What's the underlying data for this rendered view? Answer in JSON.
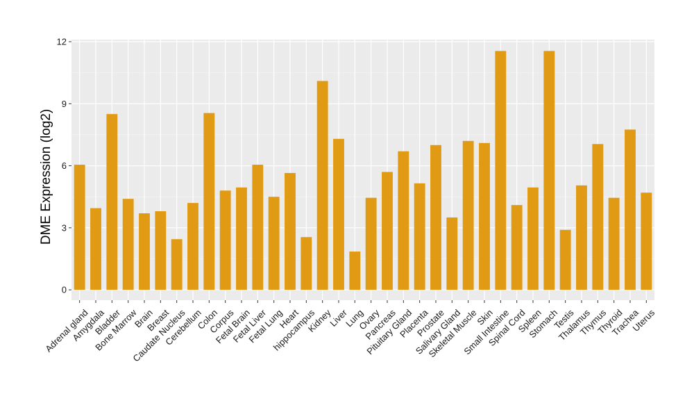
{
  "chart_data": {
    "type": "bar",
    "title": "",
    "xlabel": "",
    "ylabel": "DME Expression (log2)",
    "ylim": [
      -0.5,
      12.1
    ],
    "yticks": [
      0,
      3,
      6,
      9,
      12
    ],
    "grid": true,
    "bar_color": "#E09A14",
    "panel_color": "#EBEBEB",
    "categories": [
      "Adrenal gland",
      "Amygdala",
      "Bladder",
      "Bone Marrow",
      "Brain",
      "Breast",
      "Caudate Nucleus",
      "Cerebellum",
      "Colon",
      "Corpus",
      "Fetal Brain",
      "Fetal Liver",
      "Fetal Lung",
      "Heart",
      "hippocampus",
      "Kidney",
      "Liver",
      "Lung",
      "Ovary",
      "Pancreas",
      "Pituitary Gland",
      "Placenta",
      "Prostate",
      "Salivary Gland",
      "Skeletal Muscle",
      "Skin",
      "Small Intestine",
      "Spinal Cord",
      "Spleen",
      "Stomach",
      "Testis",
      "Thalamus",
      "Thymus",
      "Thyroid",
      "Trachea",
      "Uterus"
    ],
    "values": [
      6.05,
      3.95,
      8.5,
      4.4,
      3.7,
      3.8,
      2.45,
      4.2,
      8.55,
      4.8,
      4.95,
      6.05,
      4.5,
      5.65,
      2.55,
      10.1,
      7.3,
      1.85,
      4.45,
      5.7,
      6.7,
      5.15,
      7.0,
      3.5,
      7.2,
      7.1,
      11.55,
      4.1,
      4.95,
      11.55,
      2.9,
      5.05,
      7.05,
      4.45,
      7.75,
      4.7
    ]
  }
}
